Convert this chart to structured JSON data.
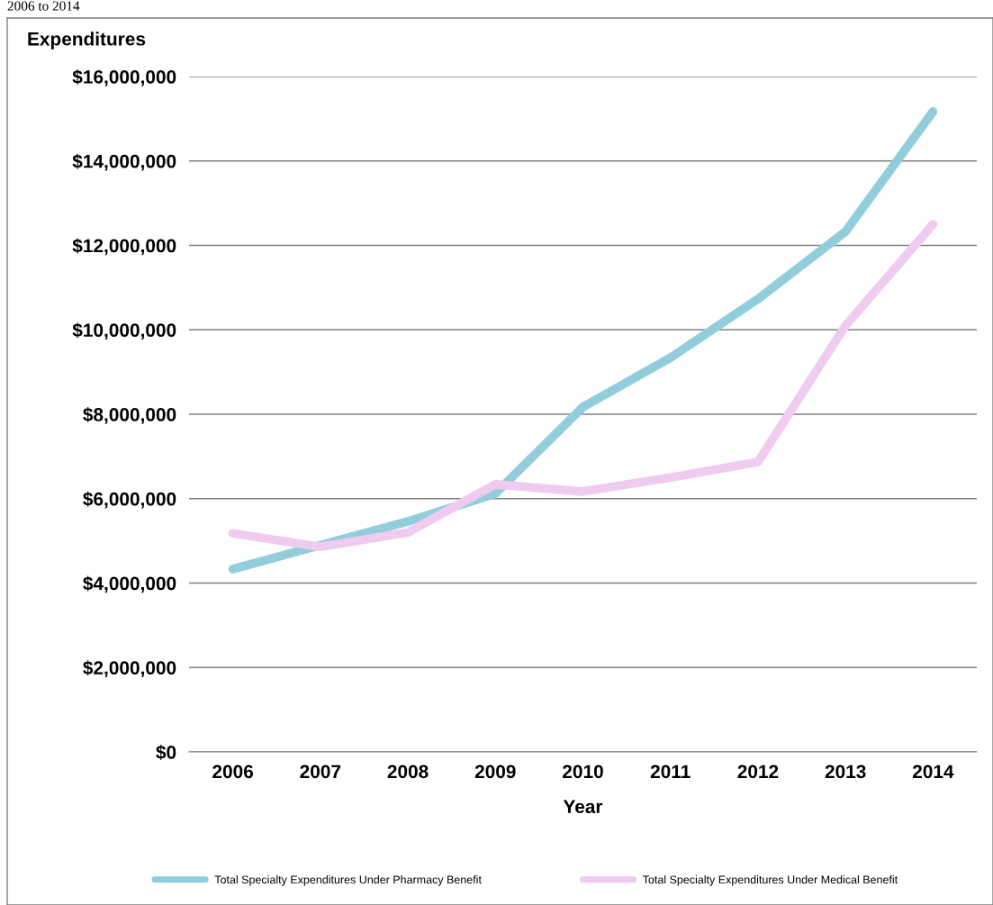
{
  "chart_data": {
    "type": "line",
    "ylabel": "Expenditures",
    "xlabel": "Year",
    "annotations": [
      "2006 to 2014"
    ],
    "categories": [
      "2006",
      "2007",
      "2008",
      "2009",
      "2010",
      "2011",
      "2012",
      "2013",
      "2014"
    ],
    "series": [
      {
        "name": "Total Specialty Expenditures Under Pharmacy Benefit",
        "color": "#92cddc",
        "values": [
          4330000,
          4900000,
          5460000,
          6120000,
          8170000,
          9340000,
          10730000,
          12330000,
          15170000
        ]
      },
      {
        "name": "Total Specialty Expenditures Under Medical Benefit",
        "color": "#efcbf0",
        "values": [
          5180000,
          4860000,
          5200000,
          6340000,
          6170000,
          6500000,
          6870000,
          10100000,
          12500000
        ]
      }
    ],
    "ylim": [
      0,
      16000000
    ],
    "yticks": [
      {
        "value": 0,
        "label": "$0"
      },
      {
        "value": 2000000,
        "label": "$2,000,000"
      },
      {
        "value": 4000000,
        "label": "$4,000,000"
      },
      {
        "value": 6000000,
        "label": "$6,000,000"
      },
      {
        "value": 8000000,
        "label": "$8,000,000"
      },
      {
        "value": 10000000,
        "label": "$10,000,000"
      },
      {
        "value": 12000000,
        "label": "$12,000,000"
      },
      {
        "value": 14000000,
        "label": "$14,000,000"
      },
      {
        "value": 16000000,
        "label": "$16,000,000"
      }
    ],
    "grid": "y",
    "legend": "bottom",
    "marker": "none",
    "line_style": "solid"
  }
}
